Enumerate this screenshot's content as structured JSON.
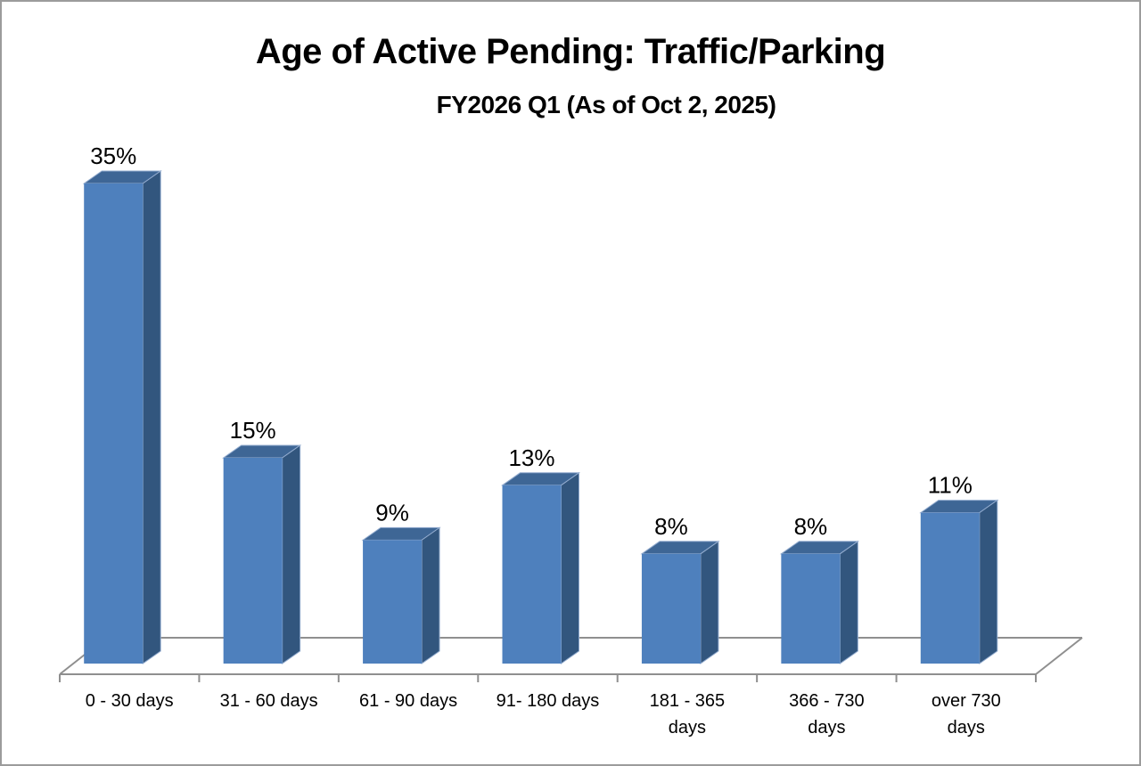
{
  "chart_data": {
    "type": "bar",
    "projection": "3d-column",
    "title": "Age of Active Pending: Traffic/Parking",
    "subtitle": "FY2026 Q1 (As of Oct 2, 2025)",
    "categories": [
      "0 - 30 days",
      "31 - 60 days",
      "61 - 90 days",
      "91- 180 days",
      "181 - 365 days",
      "366 - 730 days",
      "over 730 days"
    ],
    "values": [
      35,
      15,
      9,
      13,
      8,
      8,
      11
    ],
    "data_labels": [
      "35%",
      "15%",
      "9%",
      "13%",
      "8%",
      "8%",
      "11%"
    ],
    "unit": "%",
    "xlabel": "",
    "ylabel": "",
    "legend": "none",
    "gridlines": false,
    "value_axis_visible": false,
    "colors": {
      "bar_front": "#4E80BD",
      "bar_top": "#3E6695",
      "bar_side": "#32567E",
      "bar_edge_highlight": "#93accf",
      "floor_line": "#8f8f8f",
      "text": "#000000"
    }
  }
}
